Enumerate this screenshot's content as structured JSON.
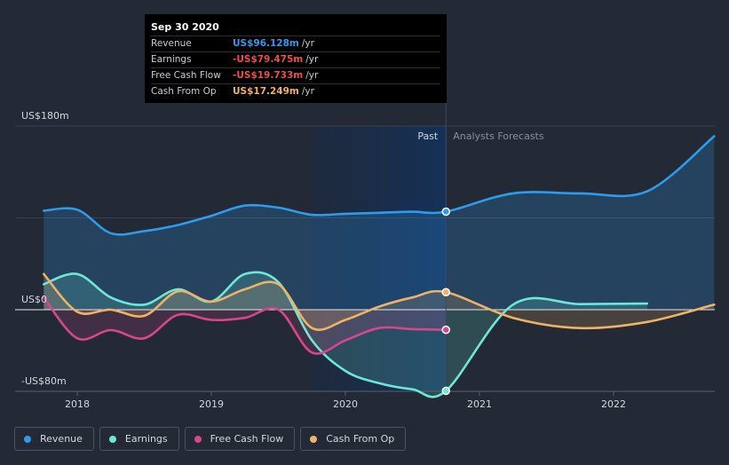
{
  "tooltip": {
    "date": "Sep 30 2020",
    "rows": [
      {
        "label": "Revenue",
        "value": "US$96.128m",
        "unit": "/yr",
        "color": "#2f9bed"
      },
      {
        "label": "Earnings",
        "value": "-US$79.475m",
        "unit": "/yr",
        "color": "#f04c4c"
      },
      {
        "label": "Free Cash Flow",
        "value": "-US$19.733m",
        "unit": "/yr",
        "color": "#f04c4c"
      },
      {
        "label": "Cash From Op",
        "value": "US$17.249m",
        "unit": "/yr",
        "color": "#f0b266"
      }
    ]
  },
  "labels": {
    "past": "Past",
    "forecast": "Analysts Forecasts"
  },
  "legend": [
    {
      "label": "Revenue",
      "color": "#2f9bed"
    },
    {
      "label": "Earnings",
      "color": "#6ee7d7"
    },
    {
      "label": "Free Cash Flow",
      "color": "#d8468c"
    },
    {
      "label": "Cash From Op",
      "color": "#f0b266"
    }
  ],
  "chart_data": {
    "type": "line",
    "title": "",
    "ylim": [
      -80,
      180
    ],
    "y_ticks": [
      {
        "value": 180,
        "label": "US$180m"
      },
      {
        "value": 0,
        "label": "US$0"
      },
      {
        "value": -80,
        "label": "-US$80m"
      }
    ],
    "xlim": [
      2017.45,
      2022.75
    ],
    "x_ticks": [
      {
        "value": 2018.0,
        "label": "2018"
      },
      {
        "value": 2019.0,
        "label": "2019"
      },
      {
        "value": 2020.0,
        "label": "2020"
      },
      {
        "value": 2021.0,
        "label": "2021"
      },
      {
        "value": 2022.0,
        "label": "2022"
      }
    ],
    "past_end": 2020.75,
    "highlight_start": 2019.75,
    "series": [
      {
        "name": "Revenue",
        "color": "#2f9bed",
        "x": [
          2017.75,
          2018.0,
          2018.25,
          2018.5,
          2018.75,
          2019.0,
          2019.25,
          2019.5,
          2019.75,
          2020.0,
          2020.25,
          2020.5,
          2020.75
        ],
        "values": [
          97,
          98,
          75,
          77,
          83,
          92,
          102,
          100,
          93,
          94,
          95,
          96,
          96.1
        ],
        "forecast_x": [
          2020.75,
          2021.25,
          2021.75,
          2022.25,
          2022.75
        ],
        "forecast_values": [
          96.1,
          114,
          114,
          116,
          170
        ]
      },
      {
        "name": "Earnings",
        "color": "#6ee7d7",
        "x": [
          2017.75,
          2018.0,
          2018.25,
          2018.5,
          2018.75,
          2019.0,
          2019.25,
          2019.5,
          2019.75,
          2020.0,
          2020.25,
          2020.5,
          2020.75
        ],
        "values": [
          25,
          35,
          12,
          5,
          20,
          8,
          35,
          27,
          -30,
          -60,
          -72,
          -78,
          -79.5
        ],
        "forecast_x": [
          2020.75,
          2021.25,
          2021.75,
          2022.25
        ],
        "forecast_values": [
          -79.5,
          5,
          5.5,
          6
        ]
      },
      {
        "name": "Free Cash Flow",
        "color": "#d8468c",
        "x": [
          2017.75,
          2018.0,
          2018.25,
          2018.5,
          2018.75,
          2019.0,
          2019.25,
          2019.5,
          2019.75,
          2020.0,
          2020.25,
          2020.5,
          2020.75
        ],
        "values": [
          12,
          -28,
          -20,
          -28,
          -5,
          -10,
          -8,
          0,
          -42,
          -30,
          -18,
          -19,
          -19.7
        ]
      },
      {
        "name": "Cash From Op",
        "color": "#f0b266",
        "x": [
          2017.75,
          2018.0,
          2018.25,
          2018.5,
          2018.75,
          2019.0,
          2019.25,
          2019.5,
          2019.75,
          2020.0,
          2020.25,
          2020.5,
          2020.75
        ],
        "values": [
          35,
          -2,
          0,
          -6,
          18,
          8,
          20,
          25,
          -18,
          -10,
          3,
          12,
          17.2
        ],
        "forecast_x": [
          2020.75,
          2021.25,
          2021.75,
          2022.25,
          2022.75
        ],
        "forecast_values": [
          17.2,
          -8,
          -18,
          -12,
          5
        ]
      }
    ]
  }
}
